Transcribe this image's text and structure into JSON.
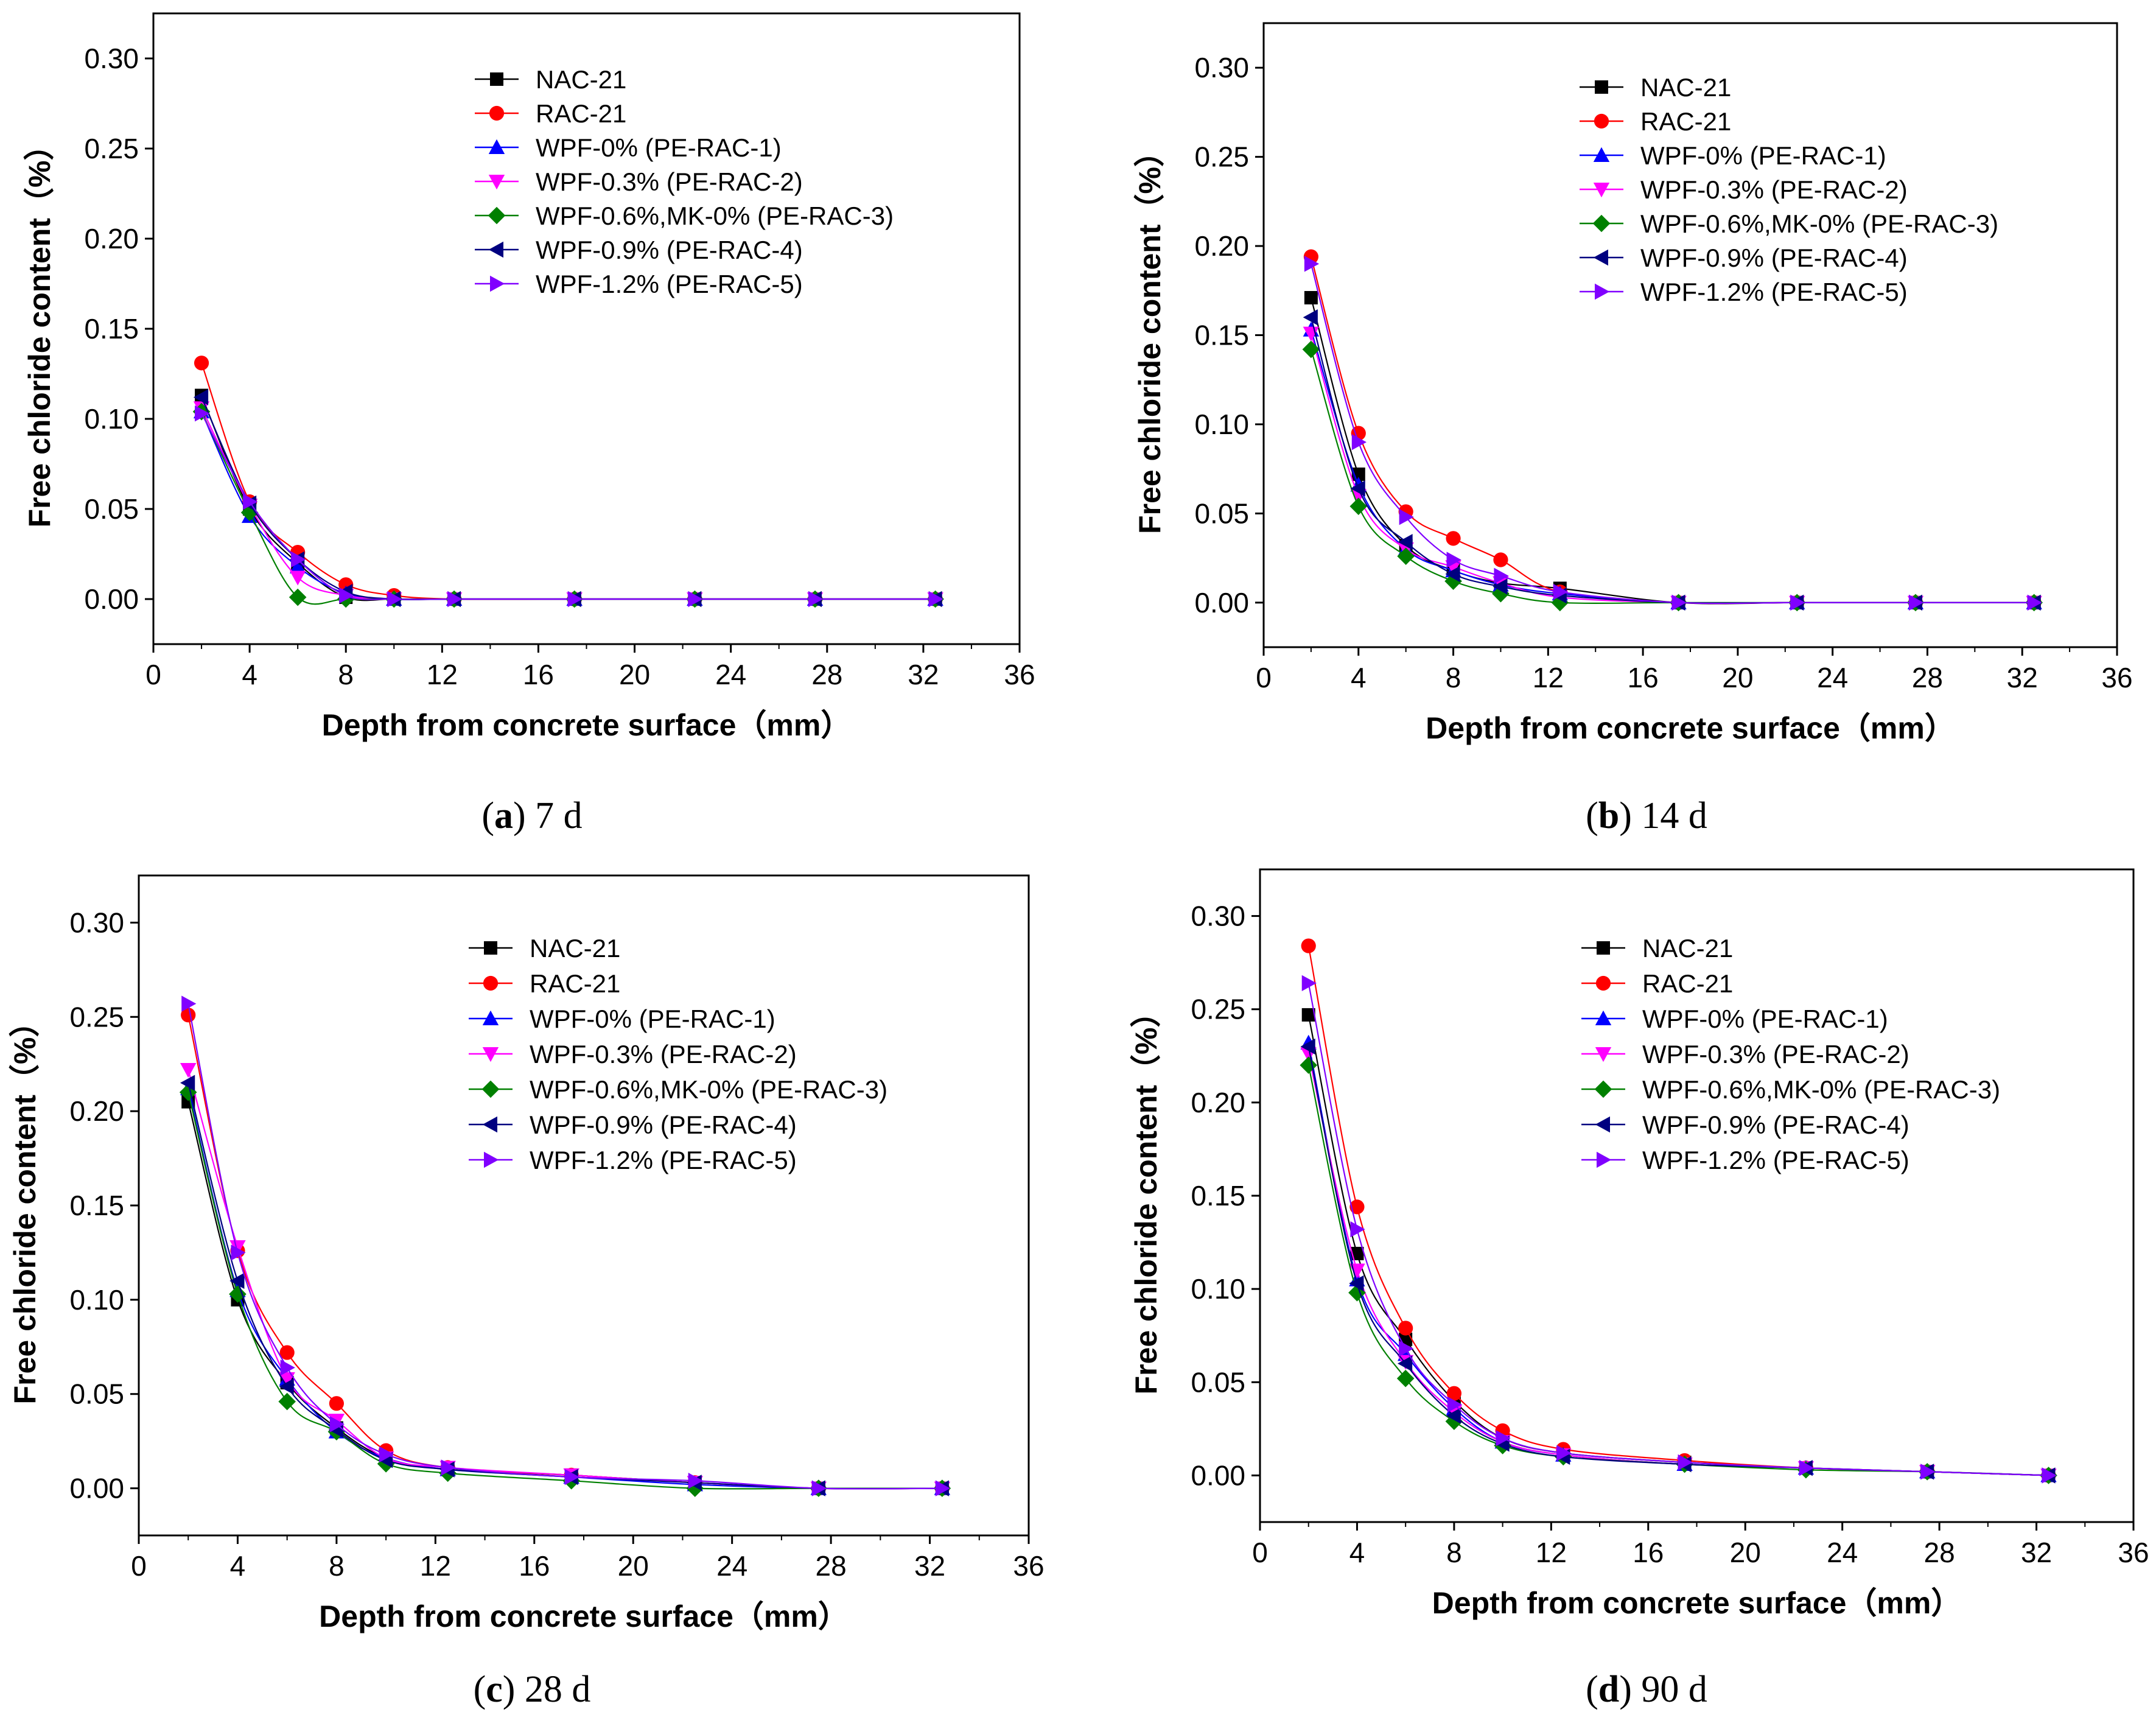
{
  "chart_data": [
    {
      "type": "line",
      "caption_letter": "a",
      "caption_rest": " 7 d",
      "xlabel": "Depth from concrete surface（mm）",
      "ylabel": "Free chloride content（%）",
      "xlim": [
        0,
        36
      ],
      "ylim": [
        -0.025,
        0.325
      ],
      "xticks": [
        "0",
        "4",
        "8",
        "12",
        "16",
        "20",
        "24",
        "28",
        "32",
        "36"
      ],
      "yticks": [
        "0.00",
        "0.05",
        "0.10",
        "0.15",
        "0.20",
        "0.25",
        "0.30"
      ],
      "series": [
        {
          "name": "NAC-21",
          "x": [
            2,
            4,
            6,
            8,
            10,
            12.5,
            17.5,
            22.5,
            27.5,
            32.5
          ],
          "values": [
            0.113,
            0.05,
            0.02,
            0.001,
            0.0,
            0.0,
            0.0,
            0.0,
            0.0,
            0.0
          ]
        },
        {
          "name": "RAC-21",
          "x": [
            2,
            4,
            6,
            8,
            10,
            12.5,
            17.5,
            22.5,
            27.5,
            32.5
          ],
          "values": [
            0.131,
            0.054,
            0.026,
            0.008,
            0.002,
            0.0,
            0.0,
            0.0,
            0.0,
            0.0
          ]
        },
        {
          "name": "WPF-0% (PE-RAC-1)",
          "x": [
            2,
            4,
            6,
            8,
            10,
            12.5,
            17.5,
            22.5,
            27.5,
            32.5
          ],
          "values": [
            0.104,
            0.046,
            0.018,
            0.003,
            0.0,
            0.0,
            0.0,
            0.0,
            0.0,
            0.0
          ]
        },
        {
          "name": "WPF-0.3% (PE-RAC-2)",
          "x": [
            2,
            4,
            6,
            8,
            10,
            12.5,
            17.5,
            22.5,
            27.5,
            32.5
          ],
          "values": [
            0.106,
            0.052,
            0.012,
            0.002,
            0.0,
            0.0,
            0.0,
            0.0,
            0.0,
            0.0
          ]
        },
        {
          "name": "WPF-0.6%,MK-0% (PE-RAC-3)",
          "x": [
            2,
            4,
            6,
            8,
            10,
            12.5,
            17.5,
            22.5,
            27.5,
            32.5
          ],
          "values": [
            0.104,
            0.048,
            0.001,
            0.0,
            0.0,
            0.0,
            0.0,
            0.0,
            0.0,
            0.0
          ]
        },
        {
          "name": "WPF-0.9% (PE-RAC-4)",
          "x": [
            2,
            4,
            6,
            8,
            10,
            12.5,
            17.5,
            22.5,
            27.5,
            32.5
          ],
          "values": [
            0.112,
            0.053,
            0.022,
            0.004,
            0.0,
            0.0,
            0.0,
            0.0,
            0.0,
            0.0
          ]
        },
        {
          "name": "WPF-1.2% (PE-RAC-5)",
          "x": [
            2,
            4,
            6,
            8,
            10,
            12.5,
            17.5,
            22.5,
            27.5,
            32.5
          ],
          "values": [
            0.103,
            0.054,
            0.022,
            0.002,
            0.0,
            0.0,
            0.0,
            0.0,
            0.0,
            0.0
          ]
        }
      ]
    },
    {
      "type": "line",
      "caption_letter": "b",
      "caption_rest": " 14 d",
      "xlabel": "Depth from concrete surface（mm）",
      "ylabel": "Free chloride content（%）",
      "xlim": [
        0,
        36
      ],
      "ylim": [
        -0.025,
        0.325
      ],
      "xticks": [
        "0",
        "4",
        "8",
        "12",
        "16",
        "20",
        "24",
        "28",
        "32",
        "36"
      ],
      "yticks": [
        "0.00",
        "0.05",
        "0.10",
        "0.15",
        "0.20",
        "0.25",
        "0.30"
      ],
      "series": [
        {
          "name": "NAC-21",
          "x": [
            2,
            4,
            6,
            8,
            10,
            12.5,
            17.5,
            22.5,
            27.5,
            32.5
          ],
          "values": [
            0.171,
            0.072,
            0.032,
            0.018,
            0.011,
            0.008,
            0.0,
            0.0,
            0.0,
            0.0
          ]
        },
        {
          "name": "RAC-21",
          "x": [
            2,
            4,
            6,
            8,
            10,
            12.5,
            17.5,
            22.5,
            27.5,
            32.5
          ],
          "values": [
            0.194,
            0.095,
            0.051,
            0.036,
            0.024,
            0.006,
            0.0,
            0.0,
            0.0,
            0.0
          ]
        },
        {
          "name": "WPF-0% (PE-RAC-1)",
          "x": [
            2,
            4,
            6,
            8,
            10,
            12.5,
            17.5,
            22.5,
            27.5,
            32.5
          ],
          "values": [
            0.153,
            0.066,
            0.03,
            0.018,
            0.01,
            0.005,
            0.0,
            0.0,
            0.0,
            0.0
          ]
        },
        {
          "name": "WPF-0.3% (PE-RAC-2)",
          "x": [
            2,
            4,
            6,
            8,
            10,
            12.5,
            17.5,
            22.5,
            27.5,
            32.5
          ],
          "values": [
            0.151,
            0.06,
            0.03,
            0.02,
            0.011,
            0.003,
            0.0,
            0.0,
            0.0,
            0.0
          ]
        },
        {
          "name": "WPF-0.6%,MK-0% (PE-RAC-3)",
          "x": [
            2,
            4,
            6,
            8,
            10,
            12.5,
            17.5,
            22.5,
            27.5,
            32.5
          ],
          "values": [
            0.142,
            0.054,
            0.026,
            0.012,
            0.005,
            0.0,
            0.0,
            0.0,
            0.0,
            0.0
          ]
        },
        {
          "name": "WPF-0.9% (PE-RAC-4)",
          "x": [
            2,
            4,
            6,
            8,
            10,
            12.5,
            17.5,
            22.5,
            27.5,
            32.5
          ],
          "values": [
            0.16,
            0.064,
            0.034,
            0.016,
            0.009,
            0.004,
            0.0,
            0.0,
            0.0,
            0.0
          ]
        },
        {
          "name": "WPF-1.2% (PE-RAC-5)",
          "x": [
            2,
            4,
            6,
            8,
            10,
            12.5,
            17.5,
            22.5,
            27.5,
            32.5
          ],
          "values": [
            0.19,
            0.09,
            0.048,
            0.024,
            0.015,
            0.006,
            0.0,
            0.0,
            0.0,
            0.0
          ]
        }
      ]
    },
    {
      "type": "line",
      "caption_letter": "c",
      "caption_rest": " 28 d",
      "xlabel": "Depth from concrete surface（mm）",
      "ylabel": "Free chloride content（%）",
      "xlim": [
        0,
        36
      ],
      "ylim": [
        -0.025,
        0.325
      ],
      "xticks": [
        "0",
        "4",
        "8",
        "12",
        "16",
        "20",
        "24",
        "28",
        "32",
        "36"
      ],
      "yticks": [
        "0.00",
        "0.05",
        "0.10",
        "0.15",
        "0.20",
        "0.25",
        "0.30"
      ],
      "series": [
        {
          "name": "NAC-21",
          "x": [
            2,
            4,
            6,
            8,
            10,
            12.5,
            17.5,
            22.5,
            27.5,
            32.5
          ],
          "values": [
            0.205,
            0.1,
            0.056,
            0.032,
            0.016,
            0.01,
            0.007,
            0.003,
            0.0,
            0.0
          ]
        },
        {
          "name": "RAC-21",
          "x": [
            2,
            4,
            6,
            8,
            10,
            12.5,
            17.5,
            22.5,
            27.5,
            32.5
          ],
          "values": [
            0.251,
            0.126,
            0.072,
            0.045,
            0.02,
            0.011,
            0.007,
            0.003,
            0.0,
            0.0
          ]
        },
        {
          "name": "WPF-0% (PE-RAC-1)",
          "x": [
            2,
            4,
            6,
            8,
            10,
            12.5,
            17.5,
            22.5,
            27.5,
            32.5
          ],
          "values": [
            0.212,
            0.105,
            0.058,
            0.03,
            0.016,
            0.01,
            0.006,
            0.002,
            0.0,
            0.0
          ]
        },
        {
          "name": "WPF-0.3% (PE-RAC-2)",
          "x": [
            2,
            4,
            6,
            8,
            10,
            12.5,
            17.5,
            22.5,
            27.5,
            32.5
          ],
          "values": [
            0.222,
            0.128,
            0.058,
            0.036,
            0.016,
            0.011,
            0.007,
            0.003,
            0.0,
            0.0
          ]
        },
        {
          "name": "WPF-0.6%,MK-0% (PE-RAC-3)",
          "x": [
            2,
            4,
            6,
            8,
            10,
            12.5,
            17.5,
            22.5,
            27.5,
            32.5
          ],
          "values": [
            0.21,
            0.103,
            0.046,
            0.03,
            0.013,
            0.008,
            0.004,
            0.0,
            0.0,
            0.0
          ]
        },
        {
          "name": "WPF-0.9% (PE-RAC-4)",
          "x": [
            2,
            4,
            6,
            8,
            10,
            12.5,
            17.5,
            22.5,
            27.5,
            32.5
          ],
          "values": [
            0.215,
            0.11,
            0.054,
            0.031,
            0.015,
            0.01,
            0.006,
            0.003,
            0.0,
            0.0
          ]
        },
        {
          "name": "WPF-1.2% (PE-RAC-5)",
          "x": [
            2,
            4,
            6,
            8,
            10,
            12.5,
            17.5,
            22.5,
            27.5,
            32.5
          ],
          "values": [
            0.257,
            0.125,
            0.064,
            0.034,
            0.018,
            0.011,
            0.006,
            0.004,
            0.0,
            0.0
          ]
        }
      ]
    },
    {
      "type": "line",
      "caption_letter": "d",
      "caption_rest": " 90 d",
      "xlabel": "Depth from concrete surface（mm）",
      "ylabel": "Free chloride content（%）",
      "xlim": [
        0,
        36
      ],
      "ylim": [
        -0.025,
        0.325
      ],
      "xticks": [
        "0",
        "4",
        "8",
        "12",
        "16",
        "20",
        "24",
        "28",
        "32",
        "36"
      ],
      "yticks": [
        "0.00",
        "0.05",
        "0.10",
        "0.15",
        "0.20",
        "0.25",
        "0.30"
      ],
      "series": [
        {
          "name": "NAC-21",
          "x": [
            2,
            4,
            6,
            8,
            10,
            12.5,
            17.5,
            22.5,
            27.5,
            32.5
          ],
          "values": [
            0.247,
            0.119,
            0.073,
            0.04,
            0.02,
            0.012,
            0.007,
            0.004,
            0.002,
            0.0
          ]
        },
        {
          "name": "RAC-21",
          "x": [
            2,
            4,
            6,
            8,
            10,
            12.5,
            17.5,
            22.5,
            27.5,
            32.5
          ],
          "values": [
            0.284,
            0.144,
            0.079,
            0.044,
            0.024,
            0.014,
            0.008,
            0.004,
            0.002,
            0.0
          ]
        },
        {
          "name": "WPF-0% (PE-RAC-1)",
          "x": [
            2,
            4,
            6,
            8,
            10,
            12.5,
            17.5,
            22.5,
            27.5,
            32.5
          ],
          "values": [
            0.232,
            0.105,
            0.065,
            0.036,
            0.018,
            0.011,
            0.006,
            0.004,
            0.002,
            0.0
          ]
        },
        {
          "name": "WPF-0.3% (PE-RAC-2)",
          "x": [
            2,
            4,
            6,
            8,
            10,
            12.5,
            17.5,
            22.5,
            27.5,
            32.5
          ],
          "values": [
            0.226,
            0.11,
            0.061,
            0.034,
            0.018,
            0.011,
            0.006,
            0.004,
            0.002,
            0.0
          ]
        },
        {
          "name": "WPF-0.6%,MK-0% (PE-RAC-3)",
          "x": [
            2,
            4,
            6,
            8,
            10,
            12.5,
            17.5,
            22.5,
            27.5,
            32.5
          ],
          "values": [
            0.22,
            0.098,
            0.052,
            0.029,
            0.016,
            0.01,
            0.006,
            0.003,
            0.002,
            0.0
          ]
        },
        {
          "name": "WPF-0.9% (PE-RAC-4)",
          "x": [
            2,
            4,
            6,
            8,
            10,
            12.5,
            17.5,
            22.5,
            27.5,
            32.5
          ],
          "values": [
            0.23,
            0.103,
            0.06,
            0.032,
            0.017,
            0.01,
            0.006,
            0.004,
            0.002,
            0.0
          ]
        },
        {
          "name": "WPF-1.2% (PE-RAC-5)",
          "x": [
            2,
            4,
            6,
            8,
            10,
            12.5,
            17.5,
            22.5,
            27.5,
            32.5
          ],
          "values": [
            0.264,
            0.132,
            0.068,
            0.038,
            0.02,
            0.012,
            0.007,
            0.004,
            0.002,
            0.0
          ]
        }
      ]
    }
  ],
  "series_styles": [
    {
      "color": "#000000",
      "marker": "square"
    },
    {
      "color": "#ff0000",
      "marker": "circle"
    },
    {
      "color": "#0000ff",
      "marker": "triangle-up"
    },
    {
      "color": "#ff00ff",
      "marker": "triangle-down"
    },
    {
      "color": "#008000",
      "marker": "diamond"
    },
    {
      "color": "#000080",
      "marker": "triangle-left"
    },
    {
      "color": "#8000ff",
      "marker": "triangle-right"
    }
  ]
}
